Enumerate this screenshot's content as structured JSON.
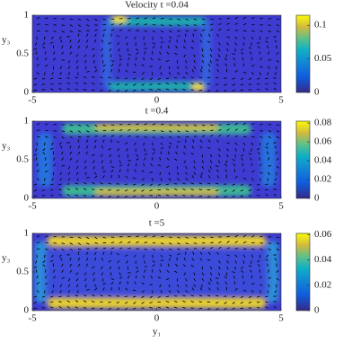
{
  "chart_data": [
    {
      "type": "heatmap",
      "title": "Velocity t =0.04",
      "ylabel": "y₃",
      "xlim": [
        -5,
        5
      ],
      "ylim": [
        0,
        1
      ],
      "xticks": [
        -5,
        0,
        5
      ],
      "yticks": [
        0,
        0.5,
        1
      ],
      "clim": [
        0,
        0.115
      ],
      "cticks": [
        0,
        0.05,
        0.1
      ]
    },
    {
      "type": "heatmap",
      "title": "t =0.4",
      "ylabel": "y₃",
      "xlim": [
        -5,
        5
      ],
      "ylim": [
        0,
        1
      ],
      "xticks": [
        -5,
        0,
        5
      ],
      "yticks": [
        0,
        0.5,
        1
      ],
      "clim": [
        0,
        0.082
      ],
      "cticks": [
        0,
        0.02,
        0.04,
        0.06,
        0.08
      ]
    },
    {
      "type": "heatmap",
      "title": "t =5",
      "ylabel": "y₃",
      "xlabel": "y₁",
      "xlim": [
        -5,
        5
      ],
      "ylim": [
        0,
        1
      ],
      "xticks": [
        -5,
        0,
        5
      ],
      "yticks": [
        0,
        0.5,
        1
      ],
      "clim": [
        0,
        0.061
      ],
      "cticks": [
        0,
        0.02,
        0.04,
        0.06
      ]
    }
  ]
}
